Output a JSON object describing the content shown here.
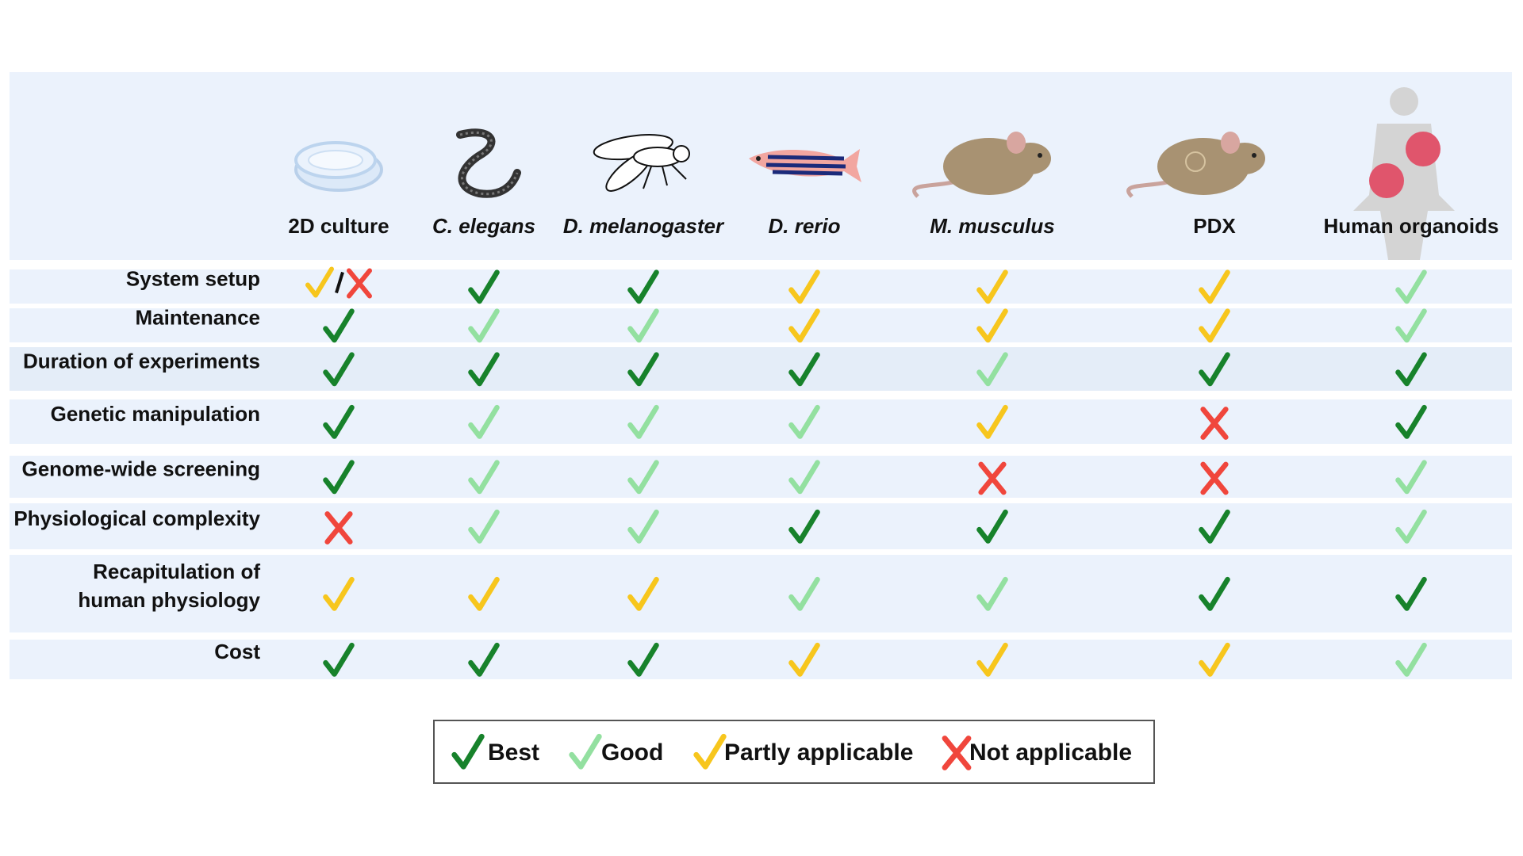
{
  "columns": [
    {
      "name": "2D culture",
      "italic": false
    },
    {
      "name": "C. elegans",
      "italic": true
    },
    {
      "name": "D. melanogaster",
      "italic": true
    },
    {
      "name": "D. rerio",
      "italic": true
    },
    {
      "name": "M. musculus",
      "italic": true
    },
    {
      "name": "PDX",
      "italic": false
    },
    {
      "name": "Human organoids",
      "italic": false
    }
  ],
  "rows": [
    {
      "label": [
        "System setup"
      ],
      "cells": [
        [
          "Partly applicable",
          "Not applicable"
        ],
        "Best",
        "Best",
        "Partly applicable",
        "Partly applicable",
        "Partly applicable",
        "Good"
      ]
    },
    {
      "label": [
        "Maintenance"
      ],
      "cells": [
        "Best",
        "Good",
        "Good",
        "Partly applicable",
        "Partly applicable",
        "Partly applicable",
        "Good"
      ]
    },
    {
      "label": [
        "Duration of experiments"
      ],
      "cells": [
        "Best",
        "Best",
        "Best",
        "Best",
        "Good",
        "Best",
        "Best"
      ]
    },
    {
      "label": [
        "Genetic manipulation"
      ],
      "cells": [
        "Best",
        "Good",
        "Good",
        "Good",
        "Partly applicable",
        "Not applicable",
        "Best"
      ]
    },
    {
      "label": [
        "Genome-wide screening"
      ],
      "cells": [
        "Best",
        "Good",
        "Good",
        "Good",
        "Not applicable",
        "Not applicable",
        "Good"
      ]
    },
    {
      "label": [
        "Physiological complexity"
      ],
      "cells": [
        "Not applicable",
        "Good",
        "Good",
        "Best",
        "Best",
        "Best",
        "Good"
      ]
    },
    {
      "label": [
        "Recapitulation of",
        "human physiology"
      ],
      "cells": [
        "Partly applicable",
        "Partly applicable",
        "Partly applicable",
        "Good",
        "Good",
        "Best",
        "Best"
      ]
    },
    {
      "label": [
        "Cost"
      ],
      "cells": [
        "Best",
        "Best",
        "Best",
        "Partly applicable",
        "Partly applicable",
        "Partly applicable",
        "Good"
      ]
    }
  ],
  "legend": [
    {
      "label": "Best",
      "symbol": "check",
      "color": "#17822b"
    },
    {
      "label": "Good",
      "symbol": "check",
      "color": "#93e0a0"
    },
    {
      "label": "Partly applicable",
      "symbol": "check",
      "color": "#f7c61d"
    },
    {
      "label": "Not applicable",
      "symbol": "cross",
      "color": "#f0463c"
    }
  ]
}
